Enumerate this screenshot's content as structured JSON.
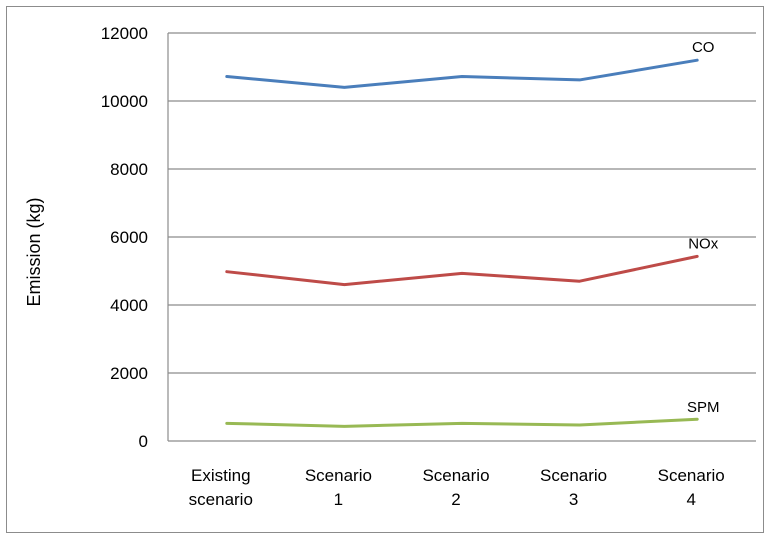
{
  "chart_data": {
    "type": "line",
    "title": "",
    "xlabel": "",
    "ylabel": "Emission (kg)",
    "ylim": [
      0,
      12000
    ],
    "yticks": [
      0,
      2000,
      4000,
      6000,
      8000,
      10000,
      12000
    ],
    "grid": "horizontal",
    "legend": "inline labels at line ends",
    "categories": [
      [
        "Existing",
        "scenario"
      ],
      [
        "Scenario",
        "1"
      ],
      [
        "Scenario",
        "2"
      ],
      [
        "Scenario",
        "3"
      ],
      [
        "Scenario",
        "4"
      ]
    ],
    "series": [
      {
        "name": "CO",
        "color": "#4a7ebb",
        "values": [
          10720,
          10400,
          10720,
          10620,
          11200
        ]
      },
      {
        "name": "NOx",
        "color": "#be4b48",
        "values": [
          4980,
          4600,
          4930,
          4700,
          5430
        ]
      },
      {
        "name": "SPM",
        "color": "#98b954",
        "values": [
          520,
          430,
          520,
          470,
          640
        ]
      }
    ]
  }
}
